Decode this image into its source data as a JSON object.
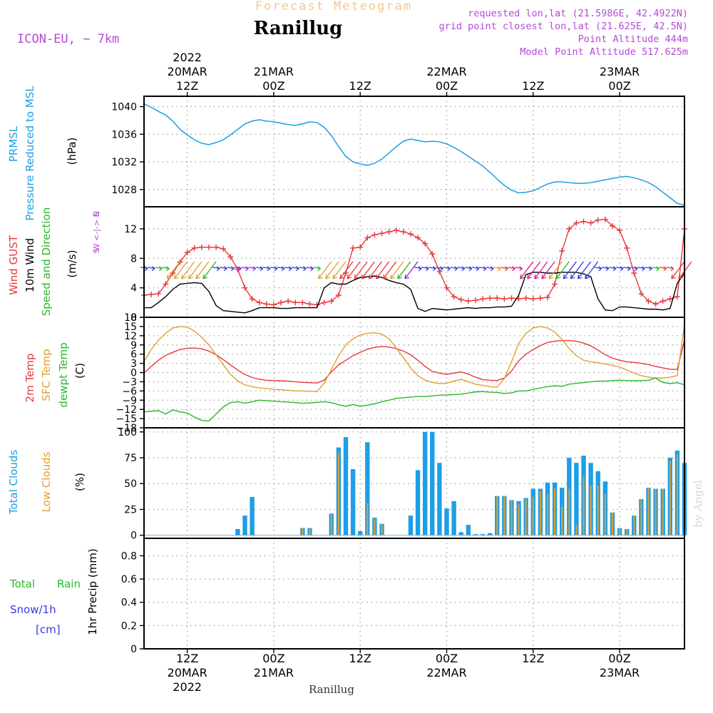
{
  "header": {
    "super_title": "Forecast Meteogram",
    "title": "Ranillug",
    "model": "ICON-EU, ~ 7km",
    "info_lines": [
      "requested lon,lat (21.5986E, 42.4922N)",
      "grid point closest lon,lat (21.625E, 42.5N)",
      "Point Altitude 444m",
      "Model Point Altitude 517.625m"
    ],
    "footer_title": "Ranillug",
    "watermark": "by Angel"
  },
  "time_axis": {
    "start_hour": 0,
    "hours_span": 75,
    "top_labels": [
      {
        "h": 6,
        "lines": [
          "2022",
          "20MAR",
          "12Z"
        ]
      },
      {
        "h": 18,
        "lines": [
          "21MAR",
          "00Z"
        ]
      },
      {
        "h": 30,
        "lines": [
          "12Z"
        ]
      },
      {
        "h": 42,
        "lines": [
          "22MAR",
          "00Z"
        ]
      },
      {
        "h": 54,
        "lines": [
          "12Z"
        ]
      },
      {
        "h": 66,
        "lines": [
          "23MAR",
          "00Z"
        ]
      }
    ],
    "bottom_labels": [
      {
        "h": 6,
        "lines": [
          "12Z",
          "20MAR",
          "2022"
        ]
      },
      {
        "h": 18,
        "lines": [
          "00Z",
          "21MAR"
        ]
      },
      {
        "h": 30,
        "lines": [
          "12Z"
        ]
      },
      {
        "h": 42,
        "lines": [
          "00Z",
          "22MAR"
        ]
      },
      {
        "h": 54,
        "lines": [
          "12Z"
        ]
      },
      {
        "h": 66,
        "lines": [
          "00Z",
          "23MAR"
        ]
      }
    ]
  },
  "panels": {
    "pressure": {
      "labels": [
        {
          "text": "PRMSL",
          "color": "#1e9ee6"
        },
        {
          "text": "Pressure Reduced to MSL",
          "color": "#1e9ee6"
        },
        {
          "text": "(hPa)",
          "color": "#000000"
        }
      ],
      "yticks": [
        "1028",
        "1032",
        "1036",
        "1040"
      ]
    },
    "wind": {
      "labels": [
        {
          "text": "Wind GUST",
          "color": "#e8383c"
        },
        {
          "text": "10m Wind",
          "color": "#000000"
        },
        {
          "text": "Speed and Direction",
          "color": "#28b828"
        },
        {
          "text": "(m/s)",
          "color": "#000000"
        }
      ],
      "compass": [
        "N",
        "W <-|-> E",
        "S"
      ],
      "yticks": [
        "0",
        "4",
        "8",
        "12"
      ]
    },
    "temperature": {
      "labels": [
        {
          "text": "2m Temp",
          "color": "#e8383c"
        },
        {
          "text": "SFC Temp",
          "color": "#e0a030"
        },
        {
          "text": "dewpt Temp",
          "color": "#28b828"
        },
        {
          "text": "(C)",
          "color": "#000000"
        }
      ],
      "yticks": [
        "18",
        "15",
        "12",
        "9",
        "6",
        "3",
        "0",
        "−3",
        "−6",
        "−9",
        "−12",
        "−15",
        "−18"
      ]
    },
    "clouds": {
      "labels": [
        {
          "text": "Total Clouds",
          "color": "#1e9ee6"
        },
        {
          "text": "Low Clouds",
          "color": "#e0a030"
        },
        {
          "text": "(%)",
          "color": "#000000"
        }
      ],
      "yticks": [
        "0",
        "25",
        "50",
        "75",
        "100"
      ]
    },
    "precip": {
      "labels": [
        {
          "text": "Total",
          "color": "#28b828"
        },
        {
          "text": "Rain",
          "color": "#28b828"
        },
        {
          "text": "Snow/1h",
          "color": "#3b3bdc"
        },
        {
          "text": "[cm]",
          "color": "#3b3bdc"
        },
        {
          "text": "1hr Precip (mm)",
          "color": "#000000"
        }
      ],
      "yticks": [
        "0",
        "0.2",
        "0.4",
        "0.6",
        "0.8"
      ]
    }
  },
  "chart_data": [
    {
      "type": "line",
      "title": "Pressure Reduced to MSL",
      "ylabel": "hPa",
      "ylim": [
        1025.5,
        1041.5
      ],
      "x": [
        0,
        1,
        2,
        3,
        4,
        5,
        6,
        7,
        8,
        9,
        10,
        11,
        12,
        13,
        14,
        15,
        16,
        17,
        18,
        19,
        20,
        21,
        22,
        23,
        24,
        25,
        26,
        27,
        28,
        29,
        30,
        31,
        32,
        33,
        34,
        35,
        36,
        37,
        38,
        39,
        40,
        41,
        42,
        43,
        44,
        45,
        46,
        47,
        48,
        49,
        50,
        51,
        52,
        53,
        54,
        55,
        56,
        57,
        58,
        59,
        60,
        61,
        62,
        63,
        64,
        65,
        66,
        67,
        68,
        69,
        70,
        71,
        72,
        73,
        74,
        75
      ],
      "series": [
        {
          "name": "PRMSL",
          "color": "#1e9ee6",
          "values": [
            1040.4,
            1039.9,
            1039.3,
            1038.8,
            1037.9,
            1036.7,
            1035.9,
            1035.2,
            1034.7,
            1034.5,
            1034.8,
            1035.2,
            1035.9,
            1036.7,
            1037.5,
            1037.9,
            1038.1,
            1037.9,
            1037.8,
            1037.6,
            1037.4,
            1037.3,
            1037.5,
            1037.8,
            1037.7,
            1037.0,
            1035.8,
            1034.2,
            1032.8,
            1032.0,
            1031.7,
            1031.5,
            1031.8,
            1032.4,
            1033.3,
            1034.2,
            1035.0,
            1035.3,
            1035.1,
            1034.9,
            1035.0,
            1034.9,
            1034.6,
            1034.1,
            1033.5,
            1032.8,
            1032.1,
            1031.4,
            1030.5,
            1029.5,
            1028.6,
            1027.9,
            1027.5,
            1027.6,
            1027.8,
            1028.3,
            1028.8,
            1029.1,
            1029.1,
            1029.0,
            1028.9,
            1028.9,
            1029.0,
            1029.2,
            1029.4,
            1029.6,
            1029.8,
            1029.9,
            1029.7,
            1029.4,
            1029.0,
            1028.4,
            1027.6,
            1026.8,
            1026.0,
            1025.7
          ]
        }
      ]
    },
    {
      "type": "line",
      "title": "Wind GUST / 10m Wind Speed and Direction",
      "ylabel": "m/s",
      "ylim": [
        0,
        15
      ],
      "x_start": 0,
      "x_step": 1,
      "series": [
        {
          "name": "Wind GUST",
          "color": "#e8383c",
          "marker": "+",
          "values": [
            3.0,
            3.1,
            3.2,
            4.5,
            6.0,
            7.5,
            8.8,
            9.4,
            9.5,
            9.5,
            9.5,
            9.3,
            8.2,
            6.5,
            4.0,
            2.5,
            2.0,
            1.8,
            1.7,
            2.0,
            2.2,
            2.0,
            2.0,
            1.8,
            1.7,
            2.0,
            2.2,
            3.0,
            6.0,
            9.4,
            9.5,
            10.8,
            11.2,
            11.4,
            11.6,
            11.8,
            11.6,
            11.3,
            10.8,
            10.0,
            8.6,
            6.2,
            4.0,
            2.8,
            2.4,
            2.2,
            2.3,
            2.5,
            2.6,
            2.6,
            2.5,
            2.6,
            2.5,
            2.6,
            2.5,
            2.6,
            2.7,
            4.5,
            9.0,
            12.0,
            12.8,
            13.0,
            12.8,
            13.2,
            13.3,
            12.4,
            11.8,
            9.4,
            6.0,
            3.2,
            2.2,
            1.8,
            2.2,
            2.5,
            2.8,
            12.0
          ]
        },
        {
          "name": "10m Wind",
          "color": "#000000",
          "values": [
            1.3,
            1.3,
            2.0,
            2.8,
            3.8,
            4.5,
            4.6,
            4.7,
            4.6,
            3.5,
            1.6,
            0.9,
            0.8,
            0.7,
            0.6,
            0.9,
            1.3,
            1.3,
            1.3,
            1.2,
            1.2,
            1.3,
            1.3,
            1.3,
            1.3,
            4.0,
            4.7,
            4.5,
            4.5,
            5.0,
            5.4,
            5.5,
            5.6,
            5.4,
            5.0,
            4.7,
            4.5,
            3.8,
            1.2,
            0.8,
            1.2,
            1.1,
            1.0,
            1.1,
            1.2,
            1.3,
            1.2,
            1.3,
            1.3,
            1.4,
            1.4,
            1.5,
            3.0,
            5.8,
            6.1,
            6.1,
            6.0,
            6.0,
            6.1,
            6.1,
            6.1,
            5.9,
            5.5,
            2.5,
            1.0,
            0.9,
            1.4,
            1.4,
            1.3,
            1.2,
            1.1,
            1.1,
            1.0,
            1.2,
            4.6,
            6.0
          ]
        }
      ]
    },
    {
      "type": "line",
      "title": "2m Temp / SFC Temp / dewpt Temp",
      "ylabel": "C",
      "ylim": [
        -18,
        18
      ],
      "x_start": 0,
      "x_step": 1,
      "series": [
        {
          "name": "2m Temp",
          "color": "#e8383c",
          "values": [
            -0.2,
            2.0,
            4.0,
            5.6,
            6.6,
            7.5,
            7.9,
            8.0,
            7.7,
            7.0,
            5.8,
            4.2,
            2.5,
            0.8,
            -0.6,
            -1.6,
            -2.2,
            -2.5,
            -2.6,
            -2.7,
            -2.8,
            -3.0,
            -3.2,
            -3.3,
            -3.4,
            -2.5,
            0.2,
            2.5,
            4.0,
            5.5,
            6.6,
            7.6,
            8.2,
            8.5,
            8.3,
            7.8,
            7.0,
            5.8,
            4.0,
            2.0,
            0.4,
            -0.2,
            -0.6,
            -0.2,
            0.2,
            -0.5,
            -1.5,
            -2.3,
            -2.5,
            -2.6,
            -1.8,
            0.5,
            3.8,
            6.0,
            7.5,
            8.8,
            9.8,
            10.2,
            10.4,
            10.4,
            10.2,
            9.6,
            8.7,
            7.3,
            5.8,
            4.7,
            4.0,
            3.5,
            3.3,
            3.0,
            2.6,
            2.0,
            1.5,
            1.1,
            1.0,
            10.5
          ]
        },
        {
          "name": "SFC Temp",
          "color": "#e0a030",
          "values": [
            3.5,
            7.5,
            10.5,
            12.8,
            14.5,
            15.0,
            14.8,
            13.5,
            11.5,
            9.0,
            5.8,
            2.5,
            -0.5,
            -2.8,
            -4.0,
            -4.6,
            -5.0,
            -5.2,
            -5.5,
            -5.6,
            -5.8,
            -6.0,
            -6.0,
            -6.1,
            -6.2,
            -3.5,
            1.0,
            5.5,
            9.0,
            11.0,
            12.2,
            12.8,
            13.0,
            12.5,
            11.0,
            8.0,
            4.8,
            1.5,
            -1.0,
            -2.5,
            -3.2,
            -3.6,
            -3.5,
            -2.8,
            -2.2,
            -3.0,
            -3.8,
            -4.2,
            -4.6,
            -4.8,
            -2.0,
            3.5,
            9.5,
            12.8,
            14.5,
            15.0,
            14.5,
            13.2,
            10.8,
            7.8,
            5.5,
            4.0,
            3.5,
            3.2,
            2.8,
            2.3,
            1.8,
            0.8,
            -0.2,
            -1.0,
            -1.5,
            -1.8,
            -1.8,
            -1.5,
            -1.0,
            15.5
          ]
        },
        {
          "name": "dewpt Temp",
          "color": "#28b828",
          "values": [
            -12.8,
            -12.6,
            -12.4,
            -13.5,
            -12.2,
            -12.8,
            -13.2,
            -14.5,
            -15.6,
            -15.8,
            -13.5,
            -11.2,
            -9.8,
            -9.5,
            -10.0,
            -9.5,
            -9.0,
            -9.2,
            -9.3,
            -9.5,
            -9.6,
            -9.8,
            -10.0,
            -9.9,
            -9.7,
            -9.5,
            -9.8,
            -10.5,
            -11.0,
            -10.4,
            -11.0,
            -10.6,
            -10.2,
            -9.5,
            -9.0,
            -8.4,
            -8.2,
            -8.0,
            -7.8,
            -7.8,
            -7.6,
            -7.4,
            -7.3,
            -7.2,
            -7.0,
            -6.7,
            -6.3,
            -6.2,
            -6.4,
            -6.5,
            -6.8,
            -6.6,
            -6.0,
            -6.0,
            -5.5,
            -5.0,
            -4.6,
            -4.3,
            -4.5,
            -3.8,
            -3.5,
            -3.3,
            -3.0,
            -2.8,
            -2.8,
            -2.6,
            -2.5,
            -2.6,
            -2.7,
            -2.6,
            -2.5,
            -1.8,
            -3.2,
            -3.6,
            -3.3,
            -4.0
          ]
        }
      ]
    },
    {
      "type": "bar",
      "title": "Total Clouds / Low Clouds",
      "ylabel": "%",
      "ylim": [
        -3,
        104
      ],
      "x_start": 0,
      "x_step": 1,
      "series": [
        {
          "name": "Total Clouds",
          "color": "#1e9ee6",
          "values": [
            0,
            0,
            0,
            0,
            0,
            0,
            0,
            0,
            0,
            0,
            0,
            0,
            0,
            6,
            19,
            37,
            0,
            0,
            0,
            0,
            0,
            0,
            7,
            7,
            0,
            0,
            21,
            85,
            95,
            64,
            4,
            90,
            17,
            11,
            0,
            0,
            0,
            19,
            63,
            100,
            100,
            70,
            26,
            33,
            3,
            10,
            1,
            1,
            2,
            38,
            38,
            34,
            33,
            36,
            45,
            45,
            51,
            51,
            46,
            75,
            70,
            77,
            70,
            62,
            52,
            22,
            7,
            6,
            19,
            35,
            46,
            45,
            45,
            75,
            82,
            70
          ]
        },
        {
          "name": "Low Clouds",
          "color": "#e0a030",
          "values": [
            0,
            0,
            0,
            0,
            0,
            0,
            0,
            0,
            0,
            0,
            0,
            0,
            0,
            0,
            0,
            0,
            0,
            0,
            0,
            0,
            0,
            0,
            7,
            7,
            0,
            0,
            21,
            80,
            0,
            0,
            0,
            31,
            16,
            11,
            0,
            0,
            0,
            0,
            0,
            0,
            0,
            0,
            0,
            0,
            0,
            0,
            0,
            0,
            0,
            38,
            38,
            34,
            30,
            35,
            37,
            43,
            40,
            45,
            28,
            45,
            10,
            57,
            48,
            48,
            40,
            22,
            7,
            6,
            19,
            35,
            46,
            45,
            45,
            72,
            78,
            69
          ]
        }
      ]
    },
    {
      "type": "bar",
      "title": "1hr Precip",
      "ylabel": "mm",
      "ylim": [
        0,
        0.95
      ],
      "series": [
        {
          "name": "Total Rain",
          "color": "#28b828",
          "values": []
        },
        {
          "name": "Snow/1h",
          "color": "#3b3bdc",
          "values": []
        }
      ]
    }
  ],
  "wind_barbs": {
    "hours": [
      0,
      1,
      2,
      3,
      4,
      5,
      6,
      7,
      8,
      9,
      10,
      11,
      12,
      13,
      14,
      15,
      16,
      17,
      18,
      19,
      20,
      21,
      22,
      23,
      24,
      25,
      26,
      27,
      28,
      29,
      30,
      31,
      32,
      33,
      34,
      35,
      36,
      37,
      38,
      39,
      40,
      41,
      42,
      43,
      44,
      45,
      46,
      47,
      48,
      49,
      50,
      51,
      52,
      53,
      54,
      55,
      56,
      57,
      58,
      59,
      60,
      61,
      62,
      63,
      64,
      65,
      66,
      67,
      68,
      69,
      70,
      71,
      72,
      73,
      74,
      75
    ],
    "colors": [
      "#3b3bdc",
      "#3b3bdc",
      "#28b828",
      "#28b828",
      "#e0a030",
      "#e0a030",
      "#e0a030",
      "#e0a030",
      "#e0a030",
      "#28b828",
      "#3b3bdc",
      "#3b3bdc",
      "#3b3bdc",
      "#8a2be2",
      "#8a2be2",
      "#8a2be2",
      "#3b3bdc",
      "#3b3bdc",
      "#3b3bdc",
      "#3b3bdc",
      "#3b3bdc",
      "#3b3bdc",
      "#3b3bdc",
      "#3b3bdc",
      "#28b828",
      "#e0a030",
      "#e0a030",
      "#e0a030",
      "#e8383c",
      "#e8383c",
      "#e8383c",
      "#e8383c",
      "#e8383c",
      "#e8383c",
      "#e8383c",
      "#e0a030",
      "#28b828",
      "#8a2be2",
      "#3b3bdc",
      "#3b3bdc",
      "#3b3bdc",
      "#3b3bdc",
      "#3b3bdc",
      "#3b3bdc",
      "#3b3bdc",
      "#3b3bdc",
      "#3b3bdc",
      "#3b3bdc",
      "#3b3bdc",
      "#e0a030",
      "#e8383c",
      "#d81b8c",
      "#d81b8c",
      "#d81b8c",
      "#d81b8c",
      "#d81b8c",
      "#d81b8c",
      "#e0a030",
      "#28b828",
      "#3b3bdc",
      "#3b3bdc",
      "#3b3bdc",
      "#3b3bdc",
      "#3b3bdc",
      "#3b3bdc",
      "#3b3bdc",
      "#3b3bdc",
      "#3b3bdc",
      "#3b3bdc",
      "#3b3bdc",
      "#3b3bdc",
      "#28b828",
      "#e8383c",
      "#e8383c",
      "#e8383c",
      "#e8383c"
    ]
  }
}
